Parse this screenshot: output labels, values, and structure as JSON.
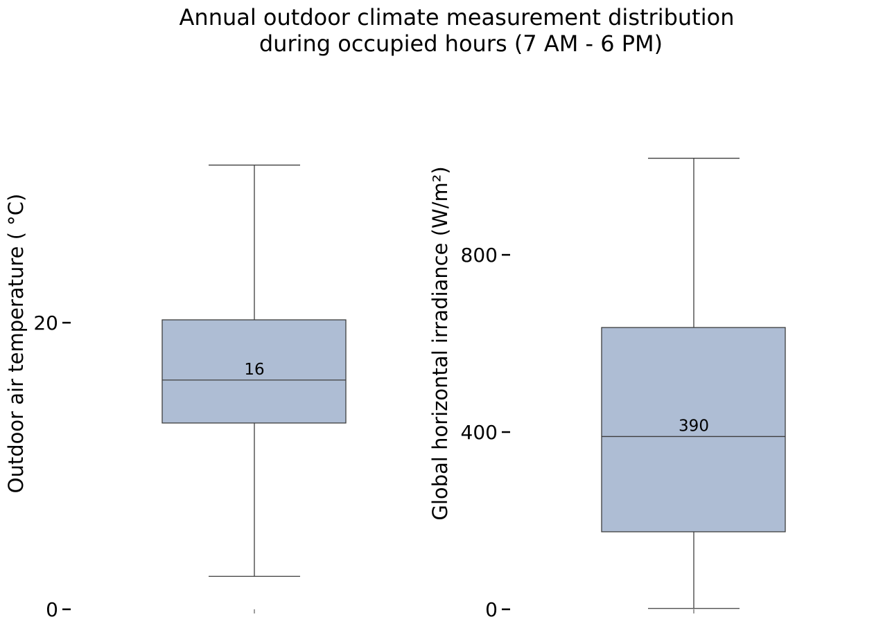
{
  "title": {
    "line1": "Annual outdoor climate measurement distribution",
    "line2": "during occupied hours (7 AM - 6 PM)"
  },
  "colors": {
    "box_fill": "#aebdd4",
    "line": "#3d3d3d"
  },
  "chart_data": [
    {
      "type": "box",
      "ylabel": "Outdoor air temperature ( °C)",
      "ylim": [
        0,
        31.6
      ],
      "yticks": [
        0,
        20
      ],
      "ytick_labels": [
        "0",
        "20"
      ],
      "grid": false,
      "stats": {
        "whisker_low": 2.3,
        "q1": 13.0,
        "median": 16.0,
        "q3": 20.2,
        "whisker_high": 31.0
      },
      "median_label": "16"
    },
    {
      "type": "box",
      "ylabel": "Global horizontal irradiance (W/m²)",
      "ylim": [
        0,
        1022
      ],
      "yticks": [
        0,
        400,
        800
      ],
      "ytick_labels": [
        "0",
        "400",
        "800"
      ],
      "grid": false,
      "stats": {
        "whisker_low": 2,
        "q1": 175,
        "median": 390,
        "q3": 636,
        "whisker_high": 1018
      },
      "median_label": "390"
    }
  ]
}
